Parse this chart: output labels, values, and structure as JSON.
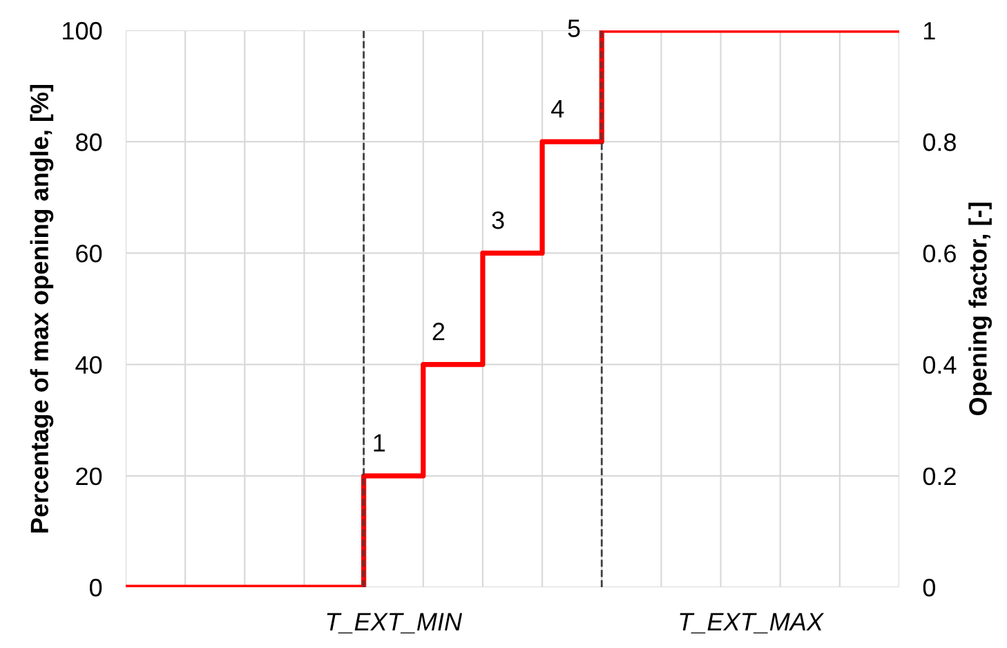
{
  "chart_data": {
    "type": "step",
    "ylabel": "Percentage of max opening angle, [%]",
    "y2label": "Opening factor, [-]",
    "categories": [
      null,
      null,
      null,
      null,
      null,
      null,
      null,
      null,
      null,
      null,
      null,
      null,
      null,
      null
    ],
    "series": [
      {
        "color": "#ff0000",
        "values": [
          0,
          0,
          0,
          0,
          20,
          40,
          60,
          80,
          100,
          100,
          100,
          100,
          100,
          100
        ]
      }
    ],
    "ylim": [
      0,
      100
    ],
    "yticks": [
      0,
      20,
      40,
      60,
      80,
      100
    ],
    "y2lim": [
      0,
      1
    ],
    "y2ticks": [
      0,
      0.2,
      0.4,
      0.6,
      0.8,
      1
    ],
    "annotations": [
      {
        "text": "1",
        "y": 20
      },
      {
        "text": "2",
        "y": 40
      },
      {
        "text": "3",
        "y": 60
      },
      {
        "text": "4",
        "y": 80
      },
      "5",
      "T_EXT_MIN",
      "T_EXT_MAX"
    ],
    "grid": true,
    "legend": false
  }
}
